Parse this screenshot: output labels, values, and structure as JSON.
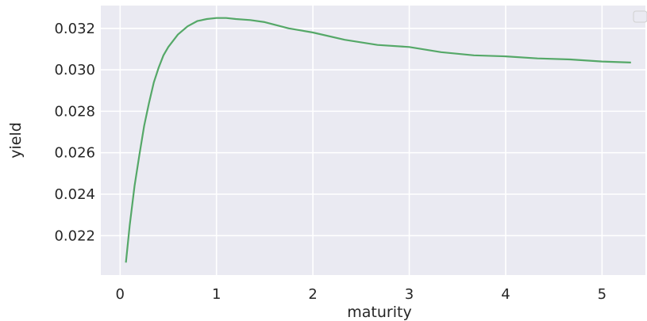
{
  "chart_data": {
    "type": "line",
    "title": "",
    "xlabel": "maturity",
    "ylabel": "yield",
    "xlim": [
      -0.2,
      5.45
    ],
    "ylim": [
      0.0201,
      0.0331
    ],
    "xticks": [
      0,
      1,
      2,
      3,
      4,
      5
    ],
    "xtick_labels": [
      "0",
      "1",
      "2",
      "3",
      "4",
      "5"
    ],
    "yticks": [
      0.022,
      0.024,
      0.026,
      0.028,
      0.03,
      0.032
    ],
    "ytick_labels": [
      "0.022",
      "0.024",
      "0.026",
      "0.028",
      "0.030",
      "0.032"
    ],
    "grid": true,
    "legend": {
      "placement": "top-right",
      "entries": []
    },
    "colors": {
      "background": "#eaeaf2",
      "grid": "#ffffff",
      "line": "#55a868"
    },
    "series": [
      {
        "x": [
          0.06,
          0.1,
          0.15,
          0.2,
          0.25,
          0.3,
          0.35,
          0.4,
          0.45,
          0.5,
          0.6,
          0.7,
          0.8,
          0.9,
          1.0,
          1.1,
          1.2,
          1.35,
          1.5,
          1.75,
          2.0,
          2.33,
          2.67,
          3.0,
          3.33,
          3.67,
          4.0,
          4.33,
          4.67,
          5.0,
          5.3
        ],
        "y": [
          0.0207,
          0.0225,
          0.0244,
          0.0259,
          0.0273,
          0.0284,
          0.0294,
          0.0301,
          0.0307,
          0.0311,
          0.0317,
          0.0321,
          0.03235,
          0.03245,
          0.0325,
          0.0325,
          0.03245,
          0.0324,
          0.0323,
          0.032,
          0.0318,
          0.03145,
          0.0312,
          0.0311,
          0.03085,
          0.0307,
          0.03065,
          0.03055,
          0.0305,
          0.0304,
          0.03035
        ]
      }
    ]
  }
}
